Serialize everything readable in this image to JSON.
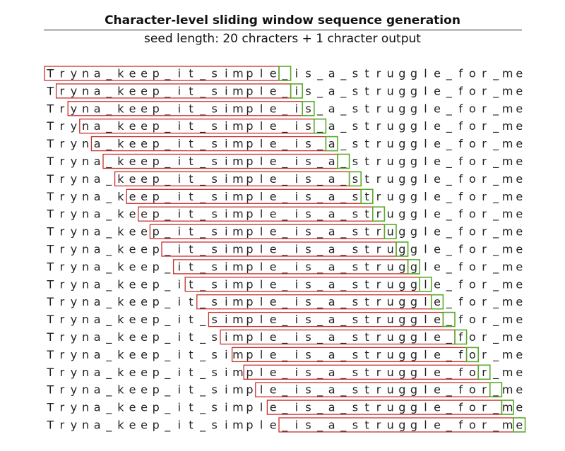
{
  "title": "Character-level sliding window sequence generation",
  "subtitle": "seed length: 20 chracters + 1 chracter output",
  "sequence": "Tryna_keep_it_simple_is_a_struggle_for_me",
  "seed_length": 20,
  "output_length": 1,
  "window_count": 21,
  "colors": {
    "seed_box": "#c8302d",
    "output_box": "#5aaa2a",
    "text": "#222222"
  }
}
